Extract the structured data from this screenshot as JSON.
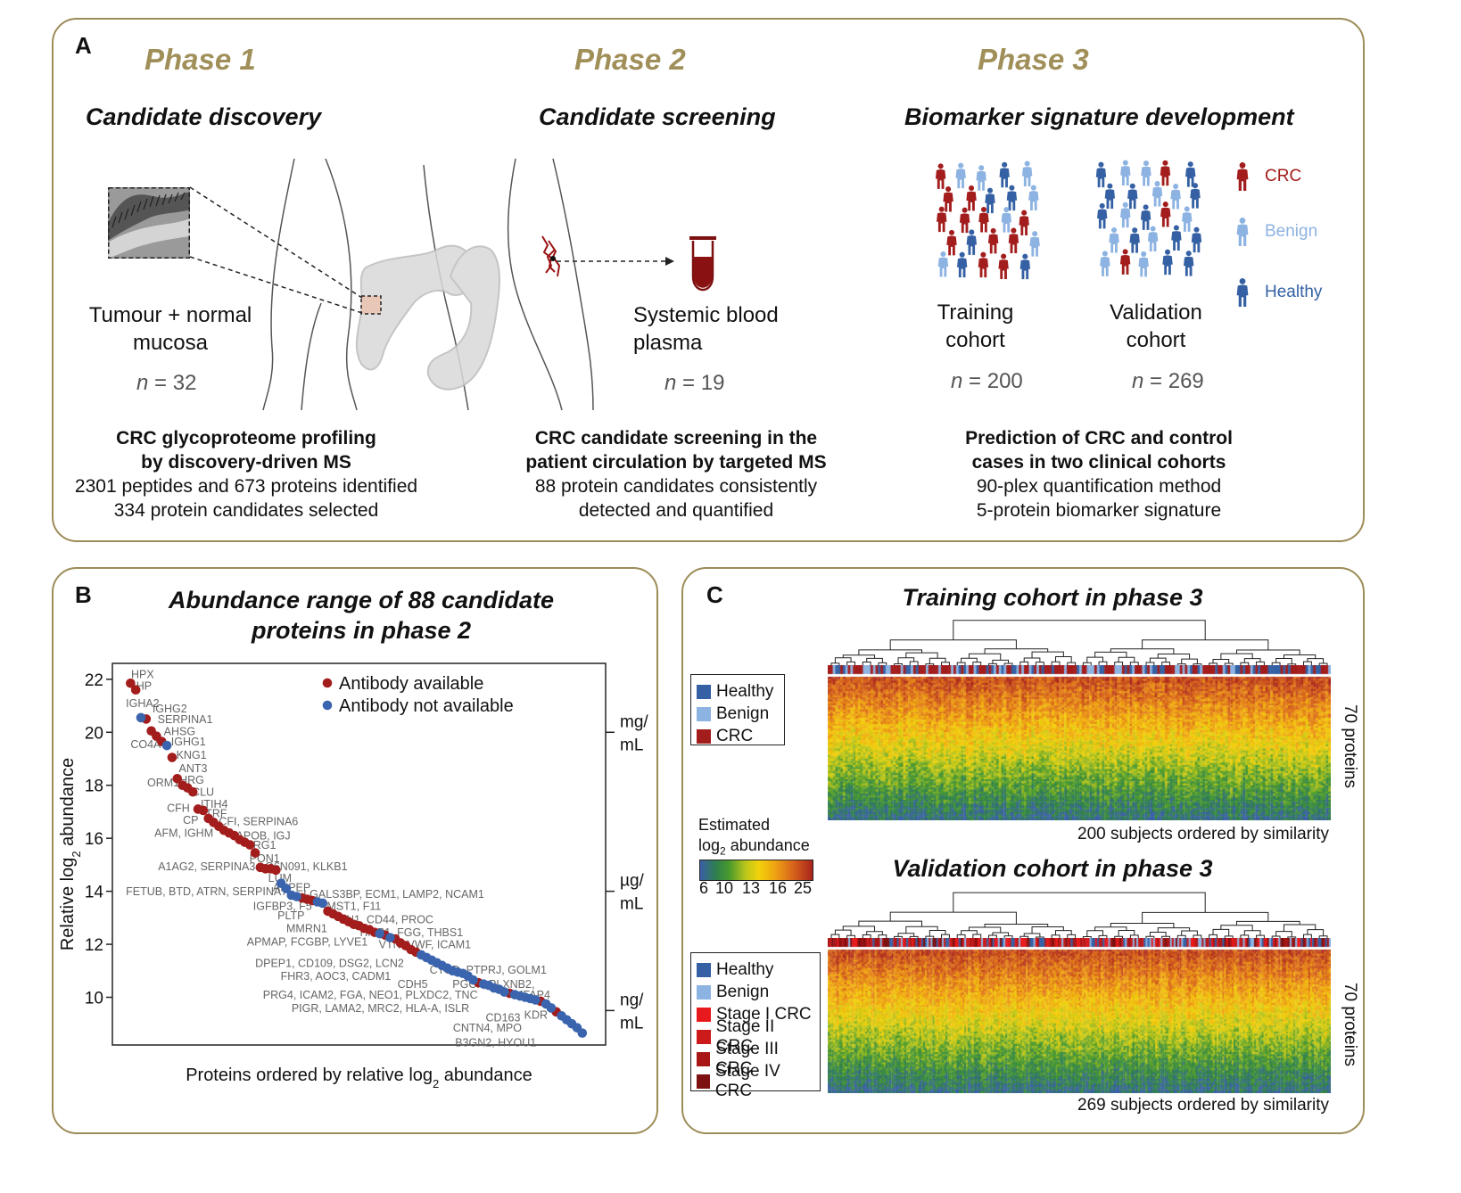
{
  "panelA": {
    "letter": "A",
    "phases": [
      {
        "label": "Phase 1",
        "subtitle": "Candidate discovery",
        "sample_label": [
          "Tumour + normal",
          "mucosa"
        ],
        "n": "32",
        "desc_bold": [
          "CRC glycoproteome profiling",
          "by discovery-driven MS"
        ],
        "desc": [
          "2301 peptides and 673 proteins identified",
          "334 protein candidates selected"
        ]
      },
      {
        "label": "Phase 2",
        "subtitle": "Candidate screening",
        "sample_label": [
          "Systemic blood",
          "plasma"
        ],
        "n": "19",
        "desc_bold": [
          "CRC candidate screening in the",
          "patient circulation by targeted MS"
        ],
        "desc": [
          "88 protein candidates consistently",
          "detected and quantified"
        ]
      },
      {
        "label": "Phase 3",
        "subtitle": "Biomarker signature development",
        "desc_bold": [
          "Prediction of CRC and control",
          "cases in two clinical cohorts"
        ],
        "desc": [
          "90-plex quantification method",
          "5-protein biomarker signature"
        ]
      }
    ],
    "cohorts": [
      {
        "label": [
          "Training",
          "cohort"
        ],
        "n": "200"
      },
      {
        "label": [
          "Validation",
          "cohort"
        ],
        "n": "269"
      }
    ],
    "n_prefix": "n",
    "n_eq": " = ",
    "people_legend": [
      {
        "label": "CRC",
        "color": "#a31d1d"
      },
      {
        "label": "Benign",
        "color": "#8db3e2"
      },
      {
        "label": "Healthy",
        "color": "#3561a4"
      }
    ]
  },
  "panelB": {
    "letter": "B",
    "title": [
      "Abundance range of 88 candidate",
      "proteins in phase 2"
    ],
    "units": [
      "mg/",
      "mL",
      "µg/",
      "mL",
      "ng/",
      "mL"
    ],
    "legend": [
      {
        "label": "Antibody available",
        "color": "#a31d1d"
      },
      {
        "label": "Antibody not available",
        "color": "#3a64ad"
      }
    ]
  },
  "panelC": {
    "letter": "C",
    "training_title": "Training cohort in phase 3",
    "validation_title": "Validation cohort in phase 3",
    "training_legend": [
      {
        "label": "Healthy",
        "color": "#3561a4"
      },
      {
        "label": "Benign",
        "color": "#8db3e2"
      },
      {
        "label": "CRC",
        "color": "#a31d1d"
      }
    ],
    "validation_legend": [
      {
        "label": "Healthy",
        "color": "#3561a4"
      },
      {
        "label": "Benign",
        "color": "#8db3e2"
      },
      {
        "label": "Stage I CRC",
        "color": "#e8191c"
      },
      {
        "label": "Stage II CRC",
        "color": "#cc1a1a"
      },
      {
        "label": "Stage III CRC",
        "color": "#a81616"
      },
      {
        "label": "Stage IV CRC",
        "color": "#7d1010"
      }
    ],
    "colorbar_title": "Estimated",
    "colorbar_title2_a": "log",
    "colorbar_title2_sub": "2",
    "colorbar_title2_b": " abundance",
    "colorbar_ticks": [
      "6",
      "10",
      "13",
      "16",
      "25"
    ],
    "training_rows_label": "70 proteins",
    "validation_rows_label": "70 proteins",
    "training_cols_label": "200 subjects ordered by similarity",
    "validation_cols_label": "269 subjects ordered by similarity"
  },
  "chart_data": {
    "type": "scatter",
    "title": "Abundance range of 88 candidate proteins in phase 2",
    "xlabel": "Proteins ordered by relative log2 abundance",
    "ylabel": "Relative log2 abundance",
    "xlabel_parts": [
      "Proteins ordered by relative log",
      "2",
      " abundance"
    ],
    "ylabel_parts": [
      "Relative log",
      "2",
      " abundance"
    ],
    "ylim": [
      8.2,
      22.6
    ],
    "yticks": [
      10,
      12,
      14,
      16,
      18,
      20,
      22
    ],
    "legend_position": "top-right",
    "series": [
      {
        "name": "Antibody available",
        "color": "#a31d1d",
        "points": [
          [
            1,
            21.85
          ],
          [
            2,
            21.6
          ],
          [
            4,
            20.5
          ],
          [
            5,
            20.05
          ],
          [
            6,
            19.85
          ],
          [
            7,
            19.65
          ],
          [
            9,
            19.05
          ],
          [
            10,
            18.25
          ],
          [
            11,
            18.0
          ],
          [
            12,
            17.9
          ],
          [
            13,
            17.75
          ],
          [
            14,
            17.1
          ],
          [
            15,
            17.05
          ],
          [
            16,
            16.75
          ],
          [
            17,
            16.6
          ],
          [
            18,
            16.45
          ],
          [
            19,
            16.3
          ],
          [
            20,
            16.2
          ],
          [
            21,
            16.1
          ],
          [
            22,
            15.95
          ],
          [
            23,
            15.85
          ],
          [
            24,
            15.75
          ],
          [
            25,
            15.45
          ],
          [
            26,
            14.9
          ],
          [
            27,
            14.85
          ],
          [
            28,
            14.85
          ],
          [
            29,
            14.8
          ],
          [
            34,
            13.75
          ],
          [
            35,
            13.7
          ],
          [
            36,
            13.65
          ],
          [
            39,
            13.25
          ],
          [
            40,
            13.15
          ],
          [
            41,
            13.05
          ],
          [
            42,
            12.95
          ],
          [
            43,
            12.85
          ],
          [
            44,
            12.75
          ],
          [
            45,
            12.7
          ],
          [
            46,
            12.6
          ],
          [
            47,
            12.55
          ],
          [
            48,
            12.45
          ],
          [
            50,
            12.35
          ],
          [
            52,
            12.2
          ],
          [
            53,
            12.05
          ],
          [
            54,
            11.95
          ],
          [
            55,
            11.8
          ],
          [
            56,
            11.7
          ],
          [
            68,
            10.55
          ],
          [
            74,
            10.15
          ],
          [
            80,
            9.85
          ],
          [
            83,
            9.45
          ]
        ]
      },
      {
        "name": "Antibody not available",
        "color": "#3a64ad",
        "points": [
          [
            3,
            20.55
          ],
          [
            8,
            19.5
          ],
          [
            30,
            14.3
          ],
          [
            31,
            14.1
          ],
          [
            32,
            13.85
          ],
          [
            33,
            13.8
          ],
          [
            37,
            13.6
          ],
          [
            38,
            13.55
          ],
          [
            49,
            12.4
          ],
          [
            51,
            12.25
          ],
          [
            57,
            11.6
          ],
          [
            58,
            11.5
          ],
          [
            59,
            11.4
          ],
          [
            60,
            11.3
          ],
          [
            61,
            11.2
          ],
          [
            62,
            11.1
          ],
          [
            63,
            11.0
          ],
          [
            64,
            10.95
          ],
          [
            65,
            10.9
          ],
          [
            66,
            10.8
          ],
          [
            67,
            10.65
          ],
          [
            69,
            10.5
          ],
          [
            70,
            10.45
          ],
          [
            71,
            10.35
          ],
          [
            72,
            10.3
          ],
          [
            73,
            10.2
          ],
          [
            75,
            10.1
          ],
          [
            76,
            10.05
          ],
          [
            77,
            10.0
          ],
          [
            78,
            9.95
          ],
          [
            79,
            9.9
          ],
          [
            81,
            9.75
          ],
          [
            82,
            9.6
          ],
          [
            84,
            9.3
          ],
          [
            85,
            9.15
          ],
          [
            86,
            9.0
          ],
          [
            87,
            8.85
          ],
          [
            88,
            8.65
          ]
        ]
      }
    ],
    "annotations": [
      {
        "text": "HPX",
        "x": 1.1,
        "y": 22.05
      },
      {
        "text": "HP",
        "x": 2.1,
        "y": 21.6
      },
      {
        "text": "IGHA2",
        "x": 0.1,
        "y": 20.95
      },
      {
        "text": "IGHG2",
        "x": 5.2,
        "y": 20.75
      },
      {
        "text": "SERPINA1",
        "x": 6.2,
        "y": 20.35
      },
      {
        "text": "AHSG",
        "x": 7.4,
        "y": 19.9
      },
      {
        "text": "CO4A",
        "x": 1.0,
        "y": 19.4
      },
      {
        "text": "IGHG1",
        "x": 8.8,
        "y": 19.5
      },
      {
        "text": "KNG1",
        "x": 9.8,
        "y": 19.0
      },
      {
        "text": "ANT3",
        "x": 10.3,
        "y": 18.5
      },
      {
        "text": "ORM1",
        "x": 4.2,
        "y": 17.95
      },
      {
        "text": "HRG",
        "x": 10.4,
        "y": 18.05
      },
      {
        "text": "CLU",
        "x": 12.8,
        "y": 17.6
      },
      {
        "text": "CFH",
        "x": 8.0,
        "y": 17.0
      },
      {
        "text": "ITIH4",
        "x": 14.5,
        "y": 17.15
      },
      {
        "text": "TRF",
        "x": 15.4,
        "y": 16.8
      },
      {
        "text": "CP",
        "x": 11.1,
        "y": 16.55
      },
      {
        "text": "CFI, SERPINA6",
        "x": 18.0,
        "y": 16.5
      },
      {
        "text": "AFM, IGHM",
        "x": 5.6,
        "y": 16.05
      },
      {
        "text": "APOB, IGJ",
        "x": 21.3,
        "y": 15.95
      },
      {
        "text": "LRG1",
        "x": 23.4,
        "y": 15.6
      },
      {
        "text": "PON1",
        "x": 23.9,
        "y": 15.1
      },
      {
        "text": "A1AG2, SERPINA3",
        "x": 6.3,
        "y": 14.8
      },
      {
        "text": "Q6N091, KLKB1",
        "x": 26.9,
        "y": 14.8
      },
      {
        "text": "LUM",
        "x": 27.5,
        "y": 14.35
      },
      {
        "text": "ANPEP",
        "x": 28.4,
        "y": 14.0
      },
      {
        "text": "FETUB, BTD, ATRN, SERPINA7",
        "x": 0.1,
        "y": 13.85
      },
      {
        "text": "LGALS3BP, ECM1, LAMP2, NCAM1",
        "x": 34.3,
        "y": 13.75
      },
      {
        "text": "IGFBP3, F5",
        "x": 24.6,
        "y": 13.3
      },
      {
        "text": "MST1, F11",
        "x": 38.8,
        "y": 13.3
      },
      {
        "text": "PLTP",
        "x": 29.3,
        "y": 12.95
      },
      {
        "text": "FN1, CD44, PROC",
        "x": 41.2,
        "y": 12.8
      },
      {
        "text": "MMRN1",
        "x": 31.0,
        "y": 12.45
      },
      {
        "text": "TIMP1, FGG, THBS1",
        "x": 44.8,
        "y": 12.3
      },
      {
        "text": "APMAP, FCGBP, LYVE1",
        "x": 23.4,
        "y": 11.95
      },
      {
        "text": "VTN, VWF, ICAM1",
        "x": 48.8,
        "y": 11.85
      },
      {
        "text": "DPEP1, CD109, DSG2, LCN2",
        "x": 25.0,
        "y": 11.15
      },
      {
        "text": "CTSD, PTPRJ, GOLM1",
        "x": 58.6,
        "y": 10.9
      },
      {
        "text": "FHR3, AOC3, CADM1",
        "x": 29.9,
        "y": 10.65
      },
      {
        "text": "CDH5",
        "x": 52.4,
        "y": 10.35
      },
      {
        "text": "PGCP, PLXNB2,",
        "x": 63.0,
        "y": 10.35
      },
      {
        "text": "MFAP4",
        "x": 74.8,
        "y": 9.95
      },
      {
        "text": "PRG4, ICAM2, FGA, NEO1, PLXDC2, TNC",
        "x": 26.5,
        "y": 9.95
      },
      {
        "text": "PIGR, LAMA2, MRC2, HLA-A, ISLR",
        "x": 32.0,
        "y": 9.45
      },
      {
        "text": "CD163",
        "x": 69.4,
        "y": 9.1
      },
      {
        "text": "KDR",
        "x": 76.8,
        "y": 9.2
      },
      {
        "text": "CNTN4, MPO",
        "x": 63.1,
        "y": 8.7
      },
      {
        "text": "B3GN2, HYOU1",
        "x": 63.5,
        "y": 8.15
      }
    ]
  }
}
